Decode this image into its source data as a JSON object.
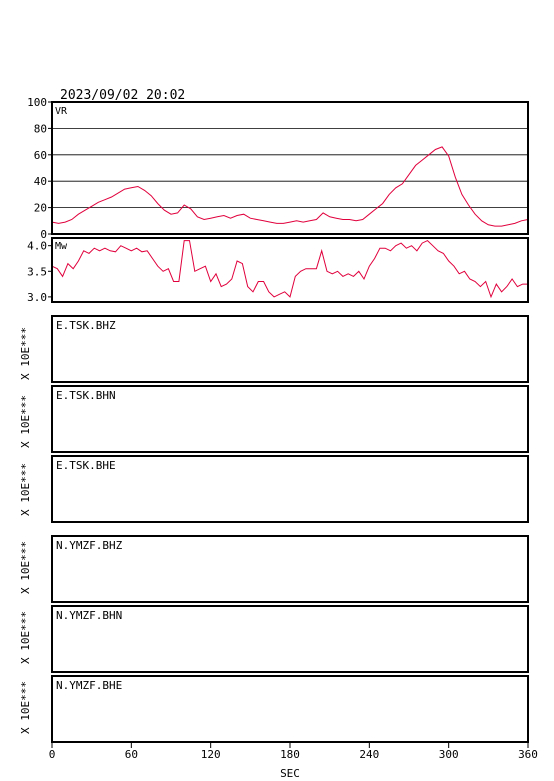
{
  "header": {
    "datetime": "2023/09/02 20:02"
  },
  "chart_data": [
    {
      "type": "line",
      "panel": "vr",
      "label": "VR",
      "ylim": [
        0,
        100
      ],
      "yticks": [
        0,
        20,
        40,
        60,
        80,
        100
      ],
      "grid": true,
      "line_color": "#e0003c",
      "x": [
        0,
        5,
        10,
        15,
        20,
        25,
        30,
        35,
        40,
        45,
        50,
        55,
        60,
        65,
        70,
        75,
        80,
        85,
        90,
        95,
        100,
        105,
        110,
        115,
        120,
        125,
        130,
        135,
        140,
        145,
        150,
        155,
        160,
        165,
        170,
        175,
        180,
        185,
        190,
        195,
        200,
        205,
        210,
        215,
        220,
        225,
        230,
        235,
        240,
        245,
        250,
        255,
        260,
        265,
        270,
        275,
        280,
        285,
        290,
        295,
        300,
        305,
        310,
        315,
        320,
        325,
        330,
        335,
        340,
        345,
        350,
        355,
        360
      ],
      "y": [
        9,
        8,
        9,
        11,
        15,
        18,
        21,
        24,
        26,
        28,
        31,
        34,
        35,
        36,
        33,
        29,
        23,
        18,
        15,
        16,
        22,
        19,
        13,
        11,
        12,
        13,
        14,
        12,
        14,
        15,
        12,
        11,
        10,
        9,
        8,
        8,
        9,
        10,
        9,
        10,
        11,
        16,
        13,
        12,
        11,
        11,
        10,
        11,
        15,
        19,
        23,
        30,
        35,
        38,
        45,
        52,
        56,
        60,
        64,
        66,
        59,
        43,
        30,
        22,
        15,
        10,
        7,
        6,
        6,
        7,
        8,
        10,
        11
      ]
    },
    {
      "type": "line",
      "panel": "mw",
      "label": "Mw",
      "ylim": [
        2.9,
        4.15
      ],
      "yticks": [
        3.0,
        3.5,
        4.0
      ],
      "ytick_labels": [
        "3.0",
        "3.5",
        "4.0"
      ],
      "grid": false,
      "line_color": "#e0003c",
      "x": [
        0,
        4,
        8,
        12,
        16,
        20,
        24,
        28,
        32,
        36,
        40,
        44,
        48,
        52,
        56,
        60,
        64,
        68,
        72,
        76,
        80,
        84,
        88,
        92,
        96,
        100,
        104,
        108,
        112,
        116,
        120,
        124,
        128,
        132,
        136,
        140,
        144,
        148,
        152,
        156,
        160,
        164,
        168,
        172,
        176,
        180,
        184,
        188,
        192,
        196,
        200,
        204,
        208,
        212,
        216,
        220,
        224,
        228,
        232,
        236,
        240,
        244,
        248,
        252,
        256,
        260,
        264,
        268,
        272,
        276,
        280,
        284,
        288,
        292,
        296,
        300,
        304,
        308,
        312,
        316,
        320,
        324,
        328,
        332,
        336,
        340,
        344,
        348,
        352,
        356,
        360
      ],
      "y": [
        3.6,
        3.55,
        3.4,
        3.65,
        3.55,
        3.7,
        3.9,
        3.85,
        3.95,
        3.9,
        3.95,
        3.9,
        3.88,
        4.0,
        3.95,
        3.9,
        3.95,
        3.88,
        3.9,
        3.75,
        3.6,
        3.5,
        3.55,
        3.3,
        3.3,
        4.1,
        4.1,
        3.5,
        3.55,
        3.6,
        3.3,
        3.45,
        3.2,
        3.25,
        3.35,
        3.7,
        3.65,
        3.2,
        3.1,
        3.3,
        3.3,
        3.1,
        3.0,
        3.05,
        3.1,
        3.0,
        3.4,
        3.5,
        3.55,
        3.55,
        3.55,
        3.9,
        3.5,
        3.45,
        3.5,
        3.4,
        3.45,
        3.4,
        3.5,
        3.35,
        3.6,
        3.75,
        3.95,
        3.95,
        3.9,
        4.0,
        4.05,
        3.95,
        4.0,
        3.9,
        4.05,
        4.1,
        4.0,
        3.9,
        3.85,
        3.7,
        3.6,
        3.45,
        3.5,
        3.35,
        3.3,
        3.2,
        3.3,
        3.0,
        3.25,
        3.1,
        3.2,
        3.35,
        3.2,
        3.25,
        3.25
      ]
    }
  ],
  "waveforms": {
    "unit_label": "X 10E***",
    "traces": [
      {
        "id": "E.TSK.BHZ"
      },
      {
        "id": "E.TSK.BHN"
      },
      {
        "id": "E.TSK.BHE"
      },
      {
        "id": "N.YMZF.BHZ"
      },
      {
        "id": "N.YMZF.BHN"
      },
      {
        "id": "N.YMZF.BHE"
      }
    ]
  },
  "x_axis": {
    "label": "SEC",
    "ticks": [
      0,
      60,
      120,
      180,
      240,
      300,
      360
    ],
    "xlim": [
      0,
      360
    ]
  }
}
